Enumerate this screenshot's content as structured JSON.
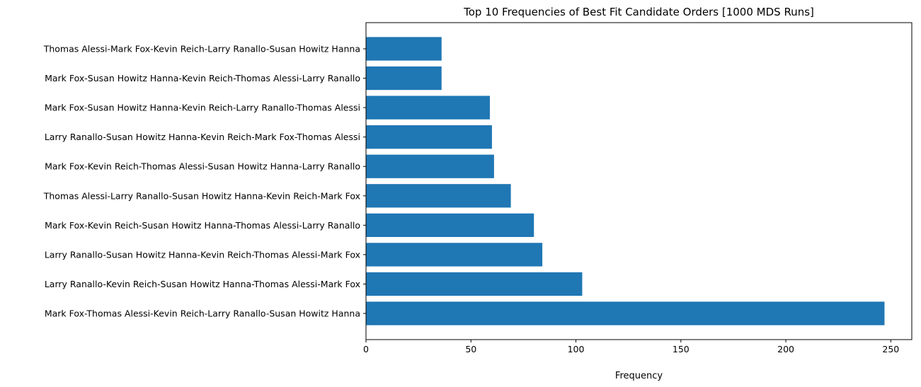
{
  "chart_data": {
    "type": "bar",
    "orientation": "horizontal",
    "title": "Top 10 Frequencies of Best Fit Candidate Orders [1000 MDS Runs]",
    "xlabel": "Frequency",
    "ylabel": "",
    "xlim": [
      0,
      260
    ],
    "xticks": [
      0,
      50,
      100,
      150,
      200,
      250
    ],
    "grid": false,
    "bar_color": "#1f77b4",
    "categories": [
      "Mark Fox-Thomas Alessi-Kevin Reich-Larry Ranallo-Susan Howitz Hanna",
      "Larry Ranallo-Kevin Reich-Susan Howitz Hanna-Thomas Alessi-Mark Fox",
      "Larry Ranallo-Susan Howitz Hanna-Kevin Reich-Thomas Alessi-Mark Fox",
      "Mark Fox-Kevin Reich-Susan Howitz Hanna-Thomas Alessi-Larry Ranallo",
      "Thomas Alessi-Larry Ranallo-Susan Howitz Hanna-Kevin Reich-Mark Fox",
      "Mark Fox-Kevin Reich-Thomas Alessi-Susan Howitz Hanna-Larry Ranallo",
      "Larry Ranallo-Susan Howitz Hanna-Kevin Reich-Mark Fox-Thomas Alessi",
      "Mark Fox-Susan Howitz Hanna-Kevin Reich-Larry Ranallo-Thomas Alessi",
      "Mark Fox-Susan Howitz Hanna-Kevin Reich-Thomas Alessi-Larry Ranallo",
      "Thomas Alessi-Mark Fox-Kevin Reich-Larry Ranallo-Susan Howitz Hanna"
    ],
    "values": [
      247,
      103,
      84,
      80,
      69,
      61,
      60,
      59,
      36,
      36
    ]
  }
}
